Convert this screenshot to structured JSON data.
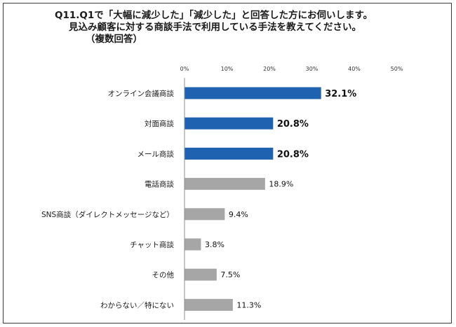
{
  "title": {
    "line1": "Q11.Q1で「大幅に減少した」「減少した」と回答した方にお伺いします。",
    "line2": "見込み顧客に対する商談手法で利用している手法を教えてください。",
    "line3": "（複数回答）"
  },
  "chart_data": {
    "type": "bar",
    "orientation": "horizontal",
    "title": "Q11.Q1で「大幅に減少した」「減少した」と回答した方にお伺いします。見込み顧客に対する商談手法で利用している手法を教えてください。（複数回答）",
    "categories": [
      "オンライン会議商談",
      "対面商談",
      "メール商談",
      "電話商談",
      "SNS商談（ダイレクトメッセージなど）",
      "チャット商談",
      "その他",
      "わからない／特にない"
    ],
    "values": [
      32.1,
      20.8,
      20.8,
      18.9,
      9.4,
      3.8,
      7.5,
      11.3
    ],
    "value_labels": [
      "32.1%",
      "20.8%",
      "20.8%",
      "18.9%",
      "9.4%",
      "3.8%",
      "7.5%",
      "11.3%"
    ],
    "highlighted": [
      true,
      true,
      true,
      false,
      false,
      false,
      false,
      false
    ],
    "xlim": [
      0,
      50
    ],
    "ticks": [
      "0%",
      "10%",
      "20%",
      "30%",
      "40%",
      "50%"
    ],
    "grid": false,
    "colors": {
      "highlight": "#1f63b0",
      "normal": "#a6a6a6"
    }
  }
}
